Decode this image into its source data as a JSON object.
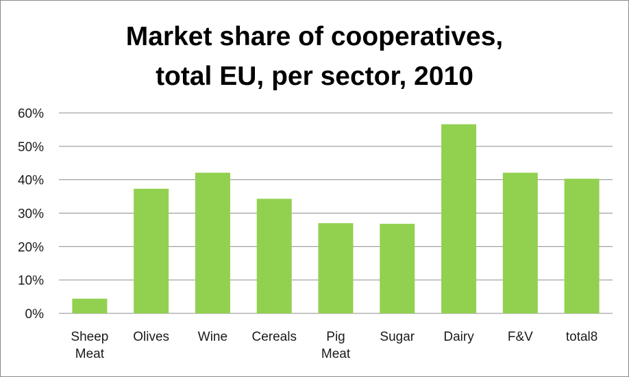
{
  "chart_data": {
    "type": "bar",
    "title": [
      "Market share of cooperatives,",
      "total EU, per sector, 2010"
    ],
    "categories": [
      [
        "Sheep",
        "Meat"
      ],
      [
        "Olives"
      ],
      [
        "Wine"
      ],
      [
        "Cereals"
      ],
      [
        "Pig",
        "Meat"
      ],
      [
        "Sugar"
      ],
      [
        "Dairy"
      ],
      [
        "F&V"
      ],
      [
        "total8"
      ]
    ],
    "values": [
      0.044,
      0.373,
      0.421,
      0.343,
      0.27,
      0.268,
      0.566,
      0.421,
      0.403
    ],
    "ylim": [
      0,
      0.6
    ],
    "yticks": [
      "0%",
      "10%",
      "20%",
      "30%",
      "40%",
      "50%",
      "60%"
    ],
    "xlabel": "",
    "ylabel": "",
    "grid": true,
    "legend": "none",
    "bar_color": "#92D050",
    "grid_color": "#8C8C8C"
  }
}
